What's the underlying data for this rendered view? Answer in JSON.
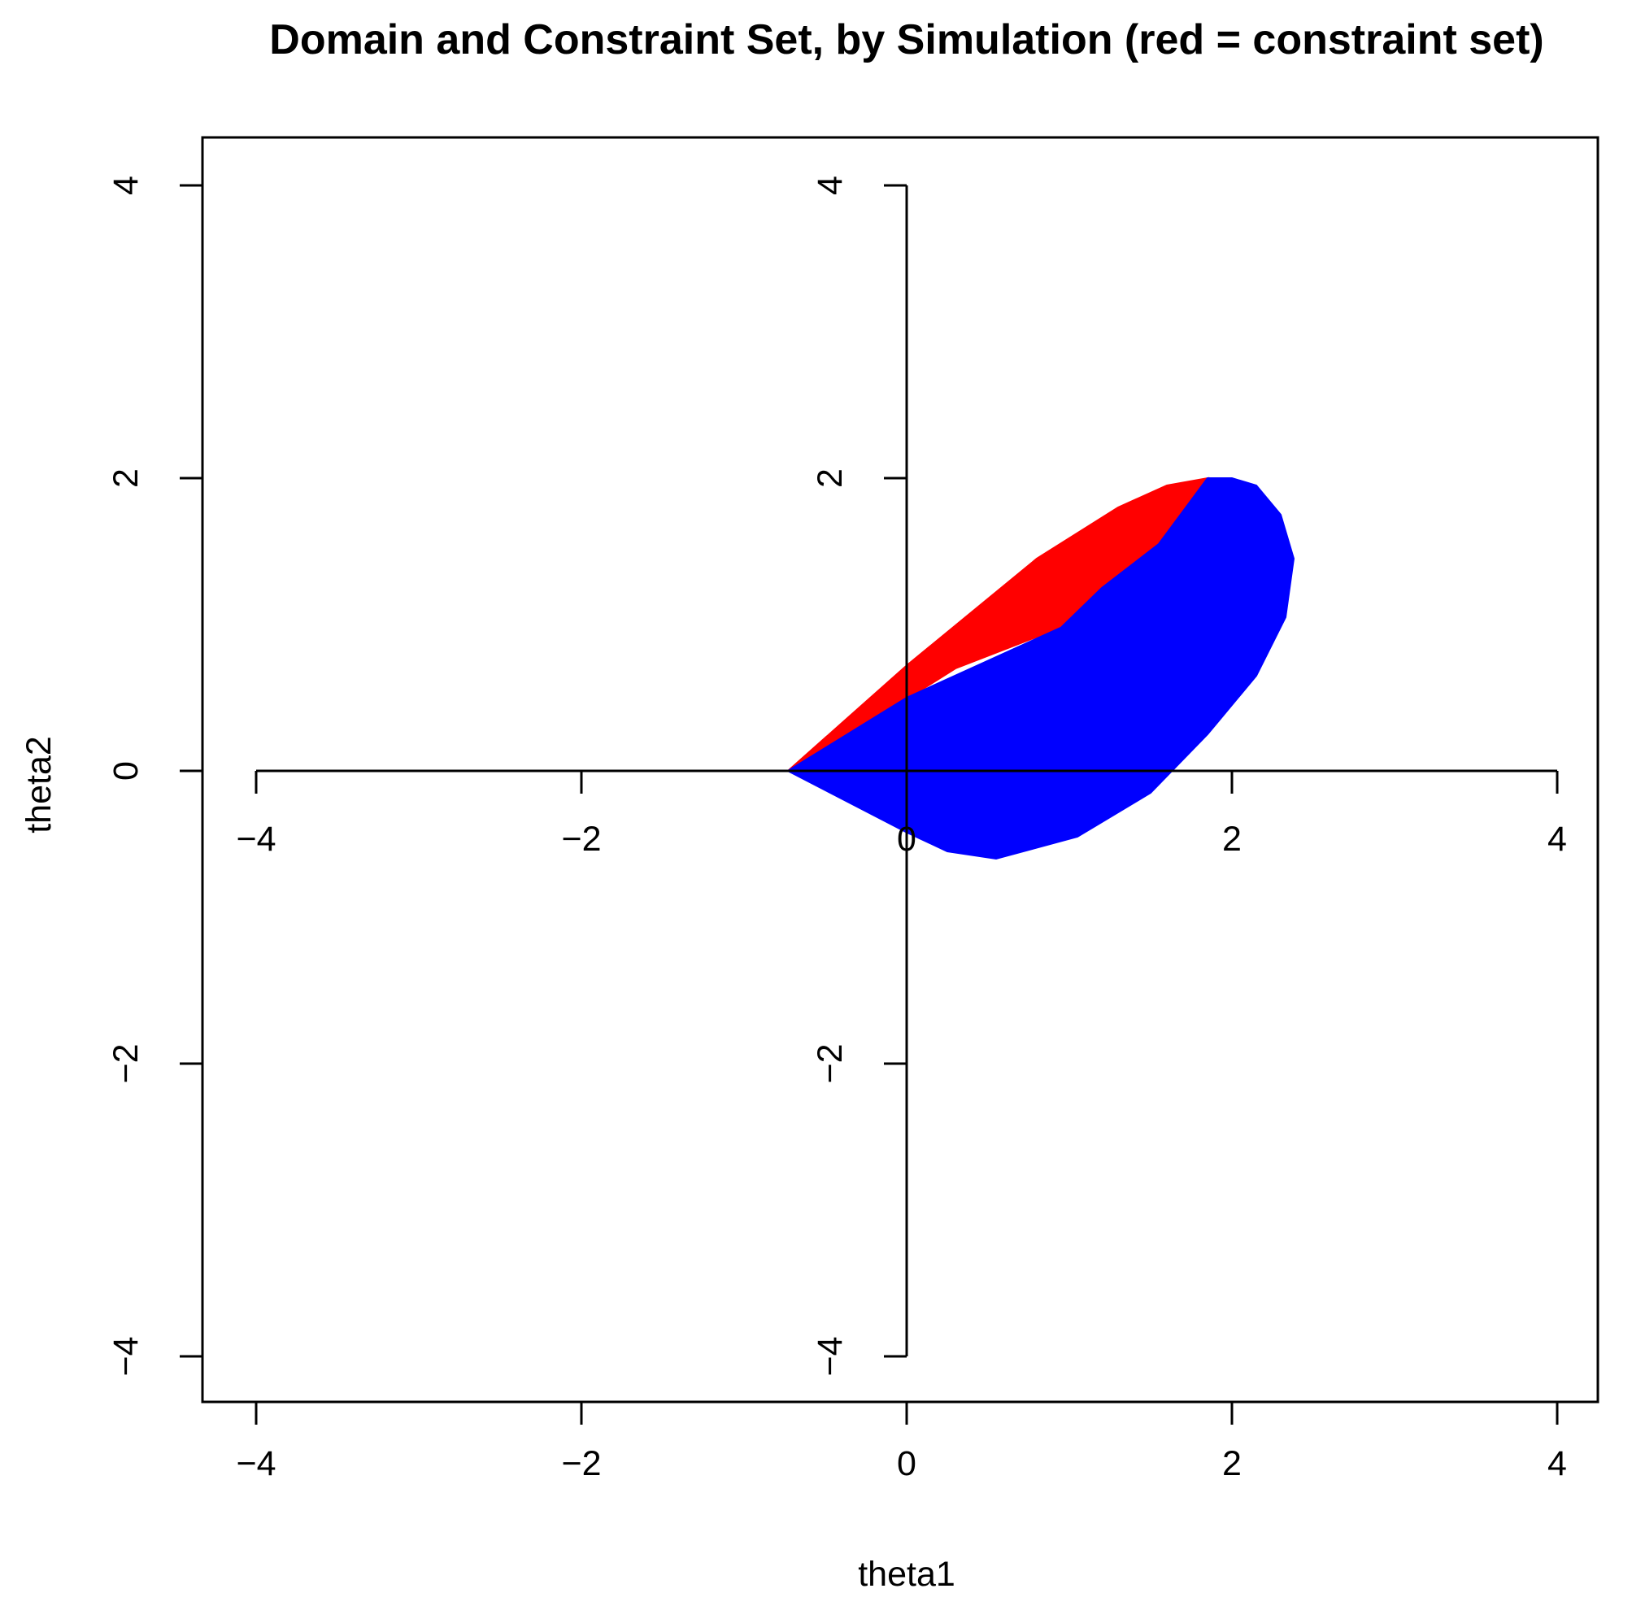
{
  "chart_data": {
    "type": "area",
    "title": "Domain and Constraint Set, by Simulation (red = constraint set)",
    "xlabel": "theta1",
    "ylabel": "theta2",
    "xlim": [
      -4.3,
      4.3
    ],
    "ylim": [
      -4.3,
      4.3
    ],
    "x_ticks": [
      -4,
      -2,
      0,
      2,
      4
    ],
    "y_ticks": [
      -4,
      -2,
      0,
      2,
      4
    ],
    "x_tick_labels": [
      "−4",
      "−2",
      "0",
      "2",
      "4"
    ],
    "y_tick_labels": [
      "−4",
      "−2",
      "0",
      "2",
      "4"
    ],
    "inner_x_tick_labels": [
      "−4",
      "−2",
      "0",
      "2",
      "4"
    ],
    "inner_y_tick_labels": [
      "−4",
      "−2",
      "2",
      "4"
    ],
    "colors": {
      "constraint_set": "#ff0000",
      "domain": "#0000ff",
      "axes": "#000000"
    },
    "series": [
      {
        "name": "constraint set",
        "color": "#ff0000",
        "points": [
          [
            -0.73,
            0.0
          ],
          [
            0.0,
            0.72
          ],
          [
            0.8,
            1.45
          ],
          [
            1.3,
            1.8
          ],
          [
            1.6,
            1.95
          ],
          [
            1.85,
            2.0
          ],
          [
            1.55,
            1.55
          ],
          [
            1.2,
            1.25
          ],
          [
            0.95,
            0.98
          ],
          [
            0.3,
            0.7
          ],
          [
            -0.2,
            0.35
          ],
          [
            -0.73,
            0.0
          ]
        ]
      },
      {
        "name": "domain",
        "color": "#0000ff",
        "points": [
          [
            -0.73,
            0.0
          ],
          [
            0.0,
            0.5
          ],
          [
            0.95,
            0.98
          ],
          [
            1.2,
            1.25
          ],
          [
            1.55,
            1.55
          ],
          [
            1.85,
            2.0
          ],
          [
            2.0,
            2.0
          ],
          [
            2.15,
            1.95
          ],
          [
            2.3,
            1.75
          ],
          [
            2.38,
            1.45
          ],
          [
            2.33,
            1.05
          ],
          [
            2.15,
            0.65
          ],
          [
            1.85,
            0.25
          ],
          [
            1.5,
            -0.15
          ],
          [
            1.05,
            -0.45
          ],
          [
            0.55,
            -0.6
          ],
          [
            0.25,
            -0.55
          ],
          [
            0.0,
            -0.42
          ],
          [
            -0.73,
            0.0
          ]
        ]
      }
    ]
  }
}
